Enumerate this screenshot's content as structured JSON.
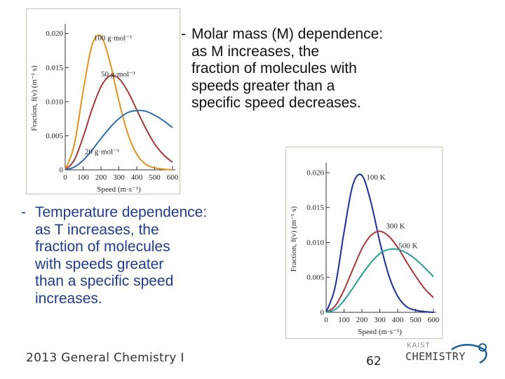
{
  "mass_text": {
    "dash": "-",
    "lines": [
      "Molar mass (M) dependence:",
      "as M increases, the",
      "fraction of molecules with",
      "speeds greater than a",
      "specific speed decreases."
    ]
  },
  "temperature_text": {
    "dash": "-",
    "lines": [
      "Temperature dependence:",
      "as T increases, the",
      "fraction of molecules",
      "with speeds greater",
      "than a specific speed",
      "increases."
    ]
  },
  "footer": {
    "course": "2013 General Chemistry I",
    "page_number": "62",
    "logo_top": "KAIST",
    "logo_bottom": "CHEMISTRY"
  },
  "colors": {
    "orange": "#e1941e",
    "red": "#a83838",
    "blue": "#2a6eb1",
    "teal": "#259e95",
    "navy": "#1a2f9a",
    "panel_border": "#b8d0a8"
  },
  "chart_data": [
    {
      "type": "line",
      "title": "",
      "xlabel": "Speed (m·s⁻¹)",
      "ylabel": "Fraction, f(v) (m⁻¹ s)",
      "xlim": [
        0,
        600
      ],
      "ylim": [
        0,
        0.021
      ],
      "xticks": [
        "0",
        "100",
        "200",
        "300",
        "400",
        "500",
        "600"
      ],
      "yticks": [
        "0",
        "0.005",
        "0.010",
        "0.015",
        "0.020"
      ],
      "series": [
        {
          "name": "100 g·mol⁻¹",
          "color": "#e1941e",
          "x": [
            0,
            50,
            100,
            150,
            200,
            250,
            300,
            350,
            400,
            450,
            500,
            550,
            600
          ],
          "y": [
            0,
            0.0036,
            0.0115,
            0.0183,
            0.0196,
            0.0158,
            0.0101,
            0.0053,
            0.0023,
            0.0008,
            0.0003,
            0.0001,
            0
          ]
        },
        {
          "name": "50 g·mol⁻¹",
          "color": "#a83838",
          "x": [
            0,
            50,
            100,
            150,
            200,
            250,
            300,
            350,
            400,
            450,
            500,
            550,
            600
          ],
          "y": [
            0,
            0.0014,
            0.0048,
            0.0089,
            0.0122,
            0.0138,
            0.0134,
            0.0115,
            0.0088,
            0.0061,
            0.0038,
            0.0022,
            0.0011
          ]
        },
        {
          "name": "20 g·mol⁻¹",
          "color": "#2a6eb1",
          "x": [
            0,
            50,
            100,
            150,
            200,
            250,
            300,
            350,
            400,
            450,
            500,
            550,
            600
          ],
          "y": [
            0,
            0.0004,
            0.0014,
            0.0029,
            0.0046,
            0.0062,
            0.0075,
            0.0084,
            0.0087,
            0.0086,
            0.008,
            0.0072,
            0.0062
          ]
        }
      ]
    },
    {
      "type": "line",
      "title": "",
      "xlabel": "Speed (m·s⁻¹)",
      "ylabel": "Fraction, f(v) (m⁻¹ s)",
      "xlim": [
        0,
        600
      ],
      "ylim": [
        0,
        0.021
      ],
      "xticks": [
        "0",
        "100",
        "200",
        "300",
        "400",
        "500",
        "600"
      ],
      "yticks": [
        "0",
        "0.005",
        "0.010",
        "0.015",
        "0.020"
      ],
      "series": [
        {
          "name": "100 K",
          "color": "#1a2f9a",
          "x": [
            0,
            50,
            100,
            150,
            200,
            250,
            300,
            350,
            400,
            450,
            500,
            550,
            600
          ],
          "y": [
            0,
            0.0036,
            0.0115,
            0.0183,
            0.0196,
            0.0158,
            0.0101,
            0.0053,
            0.0023,
            0.0008,
            0.0003,
            0.0001,
            0
          ]
        },
        {
          "name": "300 K",
          "color": "#a83838",
          "x": [
            0,
            50,
            100,
            150,
            200,
            250,
            300,
            350,
            400,
            450,
            500,
            550,
            600
          ],
          "y": [
            0,
            0.0009,
            0.0032,
            0.0062,
            0.0091,
            0.011,
            0.0116,
            0.0109,
            0.0093,
            0.0072,
            0.0052,
            0.0034,
            0.0021
          ]
        },
        {
          "name": "500 K",
          "color": "#259e95",
          "x": [
            0,
            50,
            100,
            150,
            200,
            250,
            300,
            350,
            400,
            450,
            500,
            550,
            600
          ],
          "y": [
            0,
            0.0004,
            0.0017,
            0.0035,
            0.0054,
            0.0071,
            0.0084,
            0.009,
            0.009,
            0.0085,
            0.0076,
            0.0064,
            0.0051
          ]
        }
      ]
    }
  ]
}
